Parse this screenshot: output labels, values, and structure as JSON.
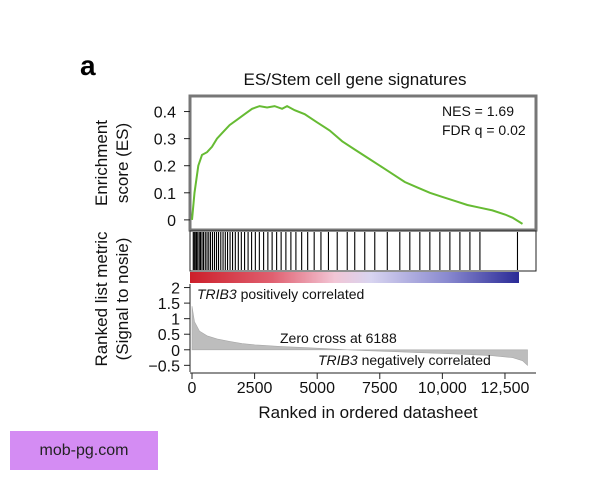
{
  "panel_letter": "a",
  "watermark": "mob-pg.com",
  "chart_data": {
    "type": "line",
    "title": "ES/Stem cell gene signatures",
    "xlabel": "Ranked in ordered datasheet",
    "xlim": [
      0,
      13500
    ],
    "x_ticks": [
      0,
      2500,
      5000,
      7500,
      10000,
      12500
    ],
    "x_tick_labels": [
      "0",
      "2500",
      "5000",
      "7500",
      "10,000",
      "12,500"
    ],
    "es_panel": {
      "ylabel_line1": "Enrichment",
      "ylabel_line2": "score (ES)",
      "ylim": [
        -0.03,
        0.45
      ],
      "y_ticks": [
        0,
        0.1,
        0.2,
        0.3,
        0.4
      ],
      "y_tick_labels": [
        "0",
        "0.1",
        "0.2",
        "0.3",
        "0.4"
      ],
      "series": [
        {
          "name": "Enrichment score",
          "color": "#66bb33",
          "x": [
            0,
            100,
            250,
            400,
            600,
            800,
            1000,
            1200,
            1500,
            1800,
            2100,
            2400,
            2700,
            3000,
            3300,
            3600,
            3800,
            4100,
            4500,
            5000,
            5500,
            6000,
            6500,
            7000,
            7500,
            8000,
            8500,
            9000,
            9500,
            10000,
            10500,
            11000,
            11500,
            12000,
            12500,
            12800,
            13200
          ],
          "values": [
            0,
            0.1,
            0.2,
            0.24,
            0.25,
            0.27,
            0.3,
            0.32,
            0.35,
            0.37,
            0.39,
            0.41,
            0.42,
            0.415,
            0.42,
            0.41,
            0.42,
            0.405,
            0.39,
            0.36,
            0.33,
            0.29,
            0.26,
            0.23,
            0.2,
            0.17,
            0.14,
            0.12,
            0.1,
            0.085,
            0.07,
            0.055,
            0.045,
            0.035,
            0.02,
            0.008,
            -0.015
          ]
        }
      ],
      "annotations": [
        "NES = 1.69",
        "FDR q = 0.02"
      ]
    },
    "hit_panel": {
      "hits_x": [
        50,
        90,
        130,
        180,
        230,
        290,
        340,
        400,
        460,
        530,
        600,
        670,
        740,
        820,
        900,
        980,
        1060,
        1150,
        1240,
        1330,
        1420,
        1520,
        1620,
        1730,
        1850,
        1970,
        2100,
        2240,
        2380,
        2530,
        2690,
        2860,
        3030,
        3200,
        3380,
        3560,
        3750,
        3950,
        4150,
        4380,
        4620,
        4880,
        5150,
        5450,
        5800,
        6200,
        6500,
        6900,
        7300,
        7800,
        8300,
        8700,
        9100,
        9500,
        9900,
        10300,
        10700,
        11100,
        11500,
        13000
      ]
    },
    "rank_panel": {
      "ylabel_line1": "Ranked list metric",
      "ylabel_line2": "(Signal to nosie)",
      "ylim": [
        -0.65,
        2.05
      ],
      "y_ticks": [
        -0.5,
        0,
        0.5,
        1,
        1.5,
        2
      ],
      "y_tick_labels": [
        "−0.5",
        "0",
        "0.5",
        "1",
        "1.5",
        "2"
      ],
      "positive_label_gene": "TRIB3",
      "positive_label_rest": " positively correlated",
      "negative_label_gene": "TRIB3",
      "negative_label_rest": " negatively correlated",
      "zero_cross_label": "Zero cross at 6188",
      "zero_cross_rank": 6188,
      "metric_x": [
        0,
        100,
        300,
        600,
        1000,
        1500,
        2000,
        2500,
        3500,
        4500,
        5500,
        6188,
        7000,
        8000,
        9000,
        10000,
        11000,
        12000,
        12800,
        13200,
        13400
      ],
      "metric_values": [
        1.4,
        0.9,
        0.6,
        0.45,
        0.35,
        0.27,
        0.2,
        0.16,
        0.11,
        0.07,
        0.03,
        0,
        -0.03,
        -0.06,
        -0.09,
        -0.12,
        -0.15,
        -0.19,
        -0.25,
        -0.35,
        -0.5
      ]
    }
  }
}
